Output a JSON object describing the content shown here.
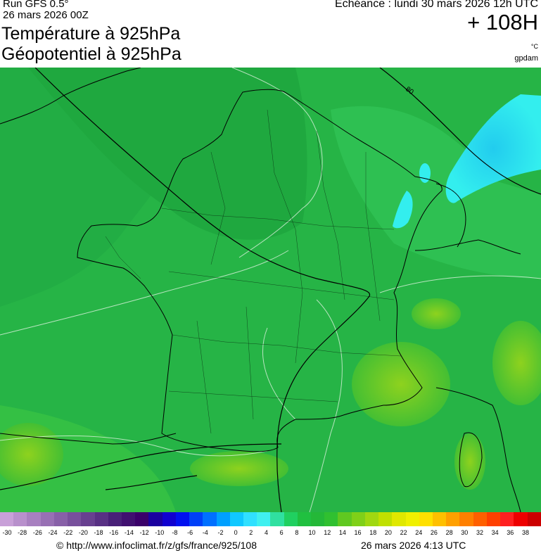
{
  "header": {
    "run": "Run GFS 0.5°",
    "run_date": "26 mars 2026 00Z",
    "title_temperature": "Température à 925hPa",
    "title_geopotential": "Géopotentiel à 925hPa",
    "echeance": "Echéance : lundi 30 mars 2026 12h UTC",
    "lead_time": "+ 108H",
    "unit_temp": "°C",
    "unit_geo": "gpdam"
  },
  "map": {
    "contour_label": "80",
    "colors": {
      "land_green": "#2db84a",
      "sea_green": "#22b34a",
      "cold_cyan": "#33eeee",
      "cold_deep": "#22ccee",
      "warm_yellowgreen": "#8ed21e",
      "border": "#000000"
    }
  },
  "scale": {
    "labels": [
      "-30",
      "-28",
      "-26",
      "-24",
      "-22",
      "-20",
      "-18",
      "-16",
      "-14",
      "-12",
      "-10",
      "-8",
      "-6",
      "-4",
      "-2",
      "0",
      "2",
      "4",
      "6",
      "8",
      "10",
      "12",
      "14",
      "16",
      "18",
      "20",
      "22",
      "24",
      "26",
      "28",
      "30",
      "32",
      "34",
      "36",
      "38"
    ],
    "colors": [
      "#c8a0d8",
      "#b890cc",
      "#a880c0",
      "#9870b4",
      "#8860a8",
      "#78509c",
      "#684090",
      "#583084",
      "#482078",
      "#401070",
      "#3a006a",
      "#1a00a0",
      "#1000d0",
      "#0010f0",
      "#0040f8",
      "#0070ff",
      "#00a0ff",
      "#10c8ff",
      "#30e0ff",
      "#40f0f0",
      "#30e0a0",
      "#20d060",
      "#20c040",
      "#24b838",
      "#30c030",
      "#60c820",
      "#80d018",
      "#a0d810",
      "#c0e000",
      "#e0e800",
      "#f0f000",
      "#ffe000",
      "#ffc000",
      "#ffa000",
      "#ff8000",
      "#ff6000",
      "#ff4000",
      "#ff2020",
      "#ee0000",
      "#cc0000"
    ]
  },
  "footer": {
    "credit": "© http://www.infoclimat.fr/z/gfs/france/925/108",
    "generated": "26 mars 2026  4:13 UTC"
  }
}
